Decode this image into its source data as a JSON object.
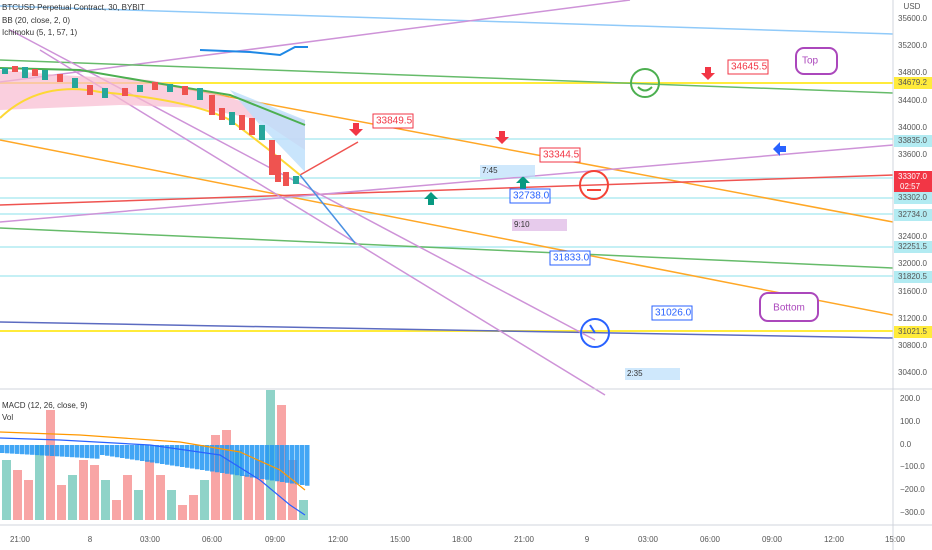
{
  "header": {
    "title": "BTCUSD Perpetual Contract, 30, BYBIT",
    "indicators": [
      "BB (20, close, 2, 0)",
      "Ichimoku (5, 1, 57, 1)"
    ]
  },
  "price_axis": {
    "unit": "USD",
    "labels": [
      "35600.0",
      "35200.0",
      "34800.0",
      "34400.0",
      "34000.0",
      "33600.0",
      "32400.0",
      "32000.0",
      "31600.0",
      "31200.0",
      "30800.0",
      "30400.0"
    ]
  },
  "badges": [
    {
      "label": "34679.2"
    },
    {
      "label": "33835.0"
    },
    {
      "label": "33307.0",
      "timer": "02:57"
    },
    {
      "label": "33302.0"
    },
    {
      "label": "32734.0"
    },
    {
      "label": "32251.5"
    },
    {
      "label": "31820.5"
    },
    {
      "label": "31021.5"
    }
  ],
  "macd_pane": {
    "title": "MACD (12, 26, close, 9)",
    "volume": "Vol",
    "labels": [
      "200.0",
      "100.0",
      "0.0",
      "−100.0",
      "−200.0",
      "−300.0"
    ]
  },
  "time_axis": [
    "21:00",
    "8",
    "03:00",
    "06:00",
    "09:00",
    "12:00",
    "15:00",
    "18:00",
    "21:00",
    "9",
    "03:00",
    "06:00",
    "09:00",
    "12:00",
    "15:00"
  ],
  "annotations": {
    "price_notes": [
      "33849.5",
      "33344.5",
      "32738.0",
      "31833.0",
      "31026.0",
      "34645.5"
    ],
    "bubbles": [
      "Top",
      "Bottom"
    ],
    "durations": [
      "7:45",
      "9:10",
      "2:35"
    ]
  }
}
